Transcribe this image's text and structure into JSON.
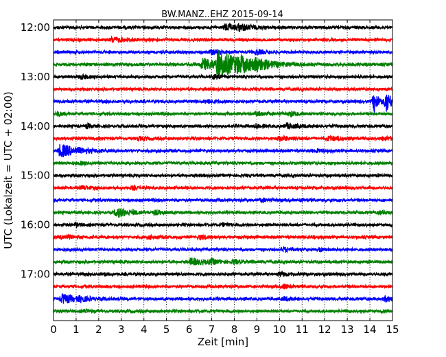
{
  "chart_data": {
    "type": "line",
    "title": "BW.MANZ..EHZ 2015-09-14",
    "xlabel": "Zeit  [min]",
    "ylabel": "UTC (Lokalzeit = UTC + 02:00)",
    "xlim": [
      0,
      15
    ],
    "x_ticks": [
      "0",
      "1",
      "2",
      "3",
      "4",
      "5",
      "6",
      "7",
      "8",
      "9",
      "10",
      "11",
      "12",
      "13",
      "14",
      "15"
    ],
    "y_ticks": [
      {
        "label": "12:00",
        "trace_index": 0
      },
      {
        "label": "13:00",
        "trace_index": 4
      },
      {
        "label": "14:00",
        "trace_index": 8
      },
      {
        "label": "15:00",
        "trace_index": 12
      },
      {
        "label": "16:00",
        "trace_index": 16
      },
      {
        "label": "17:00",
        "trace_index": 20
      }
    ],
    "grid": {
      "vertical": true,
      "horizontal": false,
      "style": "dotted"
    },
    "trace_interval_minutes": 15,
    "start_time": "12:00",
    "colors": [
      "#000000",
      "#ff0000",
      "#0000ff",
      "#008000"
    ],
    "traces": [
      {
        "start": "12:00",
        "events": [
          {
            "t": 7.6,
            "amp": 0.5,
            "dur": 0.6
          },
          {
            "t": 8.2,
            "amp": 0.4,
            "dur": 0.5
          }
        ]
      },
      {
        "start": "12:15",
        "events": [
          {
            "t": 2.6,
            "amp": 0.4,
            "dur": 0.5
          }
        ]
      },
      {
        "start": "12:30",
        "events": [
          {
            "t": 7.0,
            "amp": 0.35,
            "dur": 0.5
          },
          {
            "t": 9.0,
            "amp": 0.35,
            "dur": 0.3
          }
        ]
      },
      {
        "start": "12:45",
        "events": [
          {
            "t": 6.6,
            "amp": 0.9,
            "dur": 0.8
          },
          {
            "t": 7.3,
            "amp": 2.0,
            "dur": 1.0
          },
          {
            "t": 8.2,
            "amp": 0.7,
            "dur": 0.6
          },
          {
            "t": 9.0,
            "amp": 0.6,
            "dur": 0.5
          }
        ]
      },
      {
        "start": "13:00",
        "events": [
          {
            "t": 1.2,
            "amp": 0.3,
            "dur": 0.3
          },
          {
            "t": 7.1,
            "amp": 0.3,
            "dur": 0.3
          }
        ]
      },
      {
        "start": "13:15",
        "events": []
      },
      {
        "start": "13:30",
        "events": [
          {
            "t": 6.8,
            "amp": 0.3,
            "dur": 0.3
          },
          {
            "t": 14.2,
            "amp": 1.6,
            "dur": 0.2
          },
          {
            "t": 14.75,
            "amp": 1.6,
            "dur": 0.2
          }
        ]
      },
      {
        "start": "13:45",
        "events": [
          {
            "t": 0.2,
            "amp": 0.3,
            "dur": 0.2
          },
          {
            "t": 9.0,
            "amp": 0.3,
            "dur": 0.5
          },
          {
            "t": 10.5,
            "amp": 0.3,
            "dur": 0.3
          }
        ]
      },
      {
        "start": "14:00",
        "events": [
          {
            "t": 1.5,
            "amp": 0.3,
            "dur": 0.2
          },
          {
            "t": 9.0,
            "amp": 0.35,
            "dur": 0.2
          },
          {
            "t": 10.3,
            "amp": 0.35,
            "dur": 0.6
          }
        ]
      },
      {
        "start": "14:15",
        "events": [
          {
            "t": 3.8,
            "amp": 0.25,
            "dur": 0.2
          },
          {
            "t": 10.0,
            "amp": 0.3,
            "dur": 0.6
          },
          {
            "t": 12.2,
            "amp": 0.35,
            "dur": 0.6
          },
          {
            "t": 14.6,
            "amp": 0.25,
            "dur": 0.5
          }
        ]
      },
      {
        "start": "14:30",
        "events": [
          {
            "t": 0.3,
            "amp": 1.0,
            "dur": 0.8
          },
          {
            "t": 11.7,
            "amp": 0.3,
            "dur": 0.3
          }
        ]
      },
      {
        "start": "14:45",
        "events": [
          {
            "t": 1.2,
            "amp": 0.2,
            "dur": 0.2
          }
        ]
      },
      {
        "start": "15:00",
        "events": []
      },
      {
        "start": "15:15",
        "events": [
          {
            "t": 1.3,
            "amp": 0.3,
            "dur": 0.3
          },
          {
            "t": 3.5,
            "amp": 0.25,
            "dur": 0.2
          }
        ]
      },
      {
        "start": "15:30",
        "events": [
          {
            "t": 9.2,
            "amp": 0.25,
            "dur": 0.3
          },
          {
            "t": 11.0,
            "amp": 0.2,
            "dur": 0.2
          }
        ]
      },
      {
        "start": "15:45",
        "events": [
          {
            "t": 2.8,
            "amp": 0.7,
            "dur": 0.6
          },
          {
            "t": 4.5,
            "amp": 0.25,
            "dur": 0.3
          },
          {
            "t": 14.5,
            "amp": 0.25,
            "dur": 0.3
          }
        ]
      },
      {
        "start": "16:00",
        "events": [
          {
            "t": 1.0,
            "amp": 0.2,
            "dur": 0.2
          },
          {
            "t": 7.5,
            "amp": 0.2,
            "dur": 0.2
          }
        ]
      },
      {
        "start": "16:15",
        "events": [
          {
            "t": 0.4,
            "amp": 0.35,
            "dur": 0.4
          },
          {
            "t": 4.3,
            "amp": 0.25,
            "dur": 0.3
          },
          {
            "t": 6.5,
            "amp": 0.3,
            "dur": 0.3
          },
          {
            "t": 11.4,
            "amp": 0.2,
            "dur": 0.2
          }
        ]
      },
      {
        "start": "16:30",
        "events": [
          {
            "t": 10.2,
            "amp": 0.3,
            "dur": 0.3
          },
          {
            "t": 11.8,
            "amp": 0.25,
            "dur": 0.2
          }
        ]
      },
      {
        "start": "16:45",
        "events": [
          {
            "t": 6.1,
            "amp": 0.5,
            "dur": 0.6
          },
          {
            "t": 7.0,
            "amp": 0.3,
            "dur": 0.3
          },
          {
            "t": 8.0,
            "amp": 0.3,
            "dur": 0.3
          }
        ]
      },
      {
        "start": "17:00",
        "events": [
          {
            "t": 2.2,
            "amp": 0.25,
            "dur": 0.2
          },
          {
            "t": 10.0,
            "amp": 0.3,
            "dur": 0.4
          }
        ]
      },
      {
        "start": "17:15",
        "events": [
          {
            "t": 10.2,
            "amp": 0.3,
            "dur": 0.3
          }
        ]
      },
      {
        "start": "17:30",
        "events": [
          {
            "t": 0.4,
            "amp": 0.7,
            "dur": 0.6
          },
          {
            "t": 1.2,
            "amp": 0.3,
            "dur": 0.3
          },
          {
            "t": 10.2,
            "amp": 0.25,
            "dur": 0.4
          },
          {
            "t": 14.7,
            "amp": 0.4,
            "dur": 0.4
          }
        ]
      },
      {
        "start": "17:45",
        "events": [
          {
            "t": 1.4,
            "amp": 0.2,
            "dur": 0.2
          }
        ]
      }
    ]
  }
}
